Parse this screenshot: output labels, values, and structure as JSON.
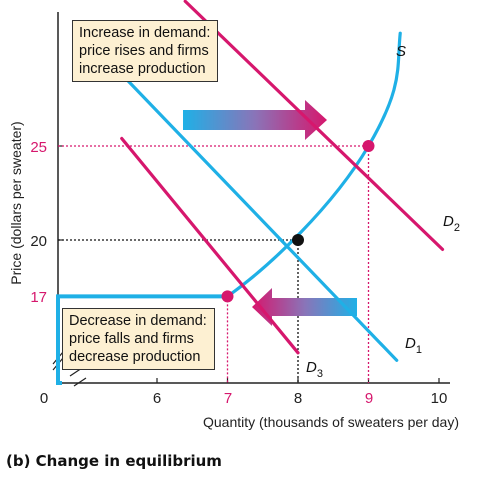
{
  "caption": "(b) Change in equilibrium",
  "annotations": {
    "increase": [
      "Increase in demand:",
      "price rises and firms",
      "increase production"
    ],
    "decrease": [
      "Decrease in demand:",
      "price falls and firms",
      "decrease production"
    ]
  },
  "colors": {
    "demand": "#d6176d",
    "supply": "#1fb0e6",
    "annotation_bg": "#fdf0d2",
    "axis": "#222222",
    "pink_text": "#d6176d"
  },
  "chart_data": {
    "type": "line",
    "xlabel": "Quantity (thousands of sweaters per day)",
    "ylabel": "Price (dollars per sweater)",
    "x_ticks": [
      "0",
      "6",
      "7",
      "8",
      "9",
      "10"
    ],
    "y_ticks": [
      "17",
      "20",
      "25"
    ],
    "xlim": [
      5,
      10.5
    ],
    "ylim": [
      15,
      33
    ],
    "axis_breaks": true,
    "series": [
      {
        "name": "S",
        "points": [
          [
            7,
            17
          ],
          [
            8,
            20
          ],
          [
            9,
            25
          ],
          [
            9.45,
            31
          ]
        ]
      },
      {
        "name": "D1",
        "points": [
          [
            5.4,
            29.2
          ],
          [
            9.4,
            13.6
          ]
        ]
      },
      {
        "name": "D2",
        "points": [
          [
            6.4,
            32.7
          ],
          [
            10.05,
            19.5
          ]
        ]
      },
      {
        "name": "D3",
        "points": [
          [
            5.5,
            25.4
          ],
          [
            8,
            14
          ]
        ]
      }
    ],
    "equilibria": [
      {
        "x": 8,
        "y": 20,
        "label": "original"
      },
      {
        "x": 9,
        "y": 25,
        "label": "after increase in demand"
      },
      {
        "x": 7,
        "y": 17,
        "label": "after decrease in demand"
      }
    ],
    "shifts": [
      {
        "from": "D1",
        "to": "D2",
        "direction": "right"
      },
      {
        "from": "D1",
        "to": "D3",
        "direction": "left"
      }
    ],
    "grid": false,
    "legend": "none"
  }
}
